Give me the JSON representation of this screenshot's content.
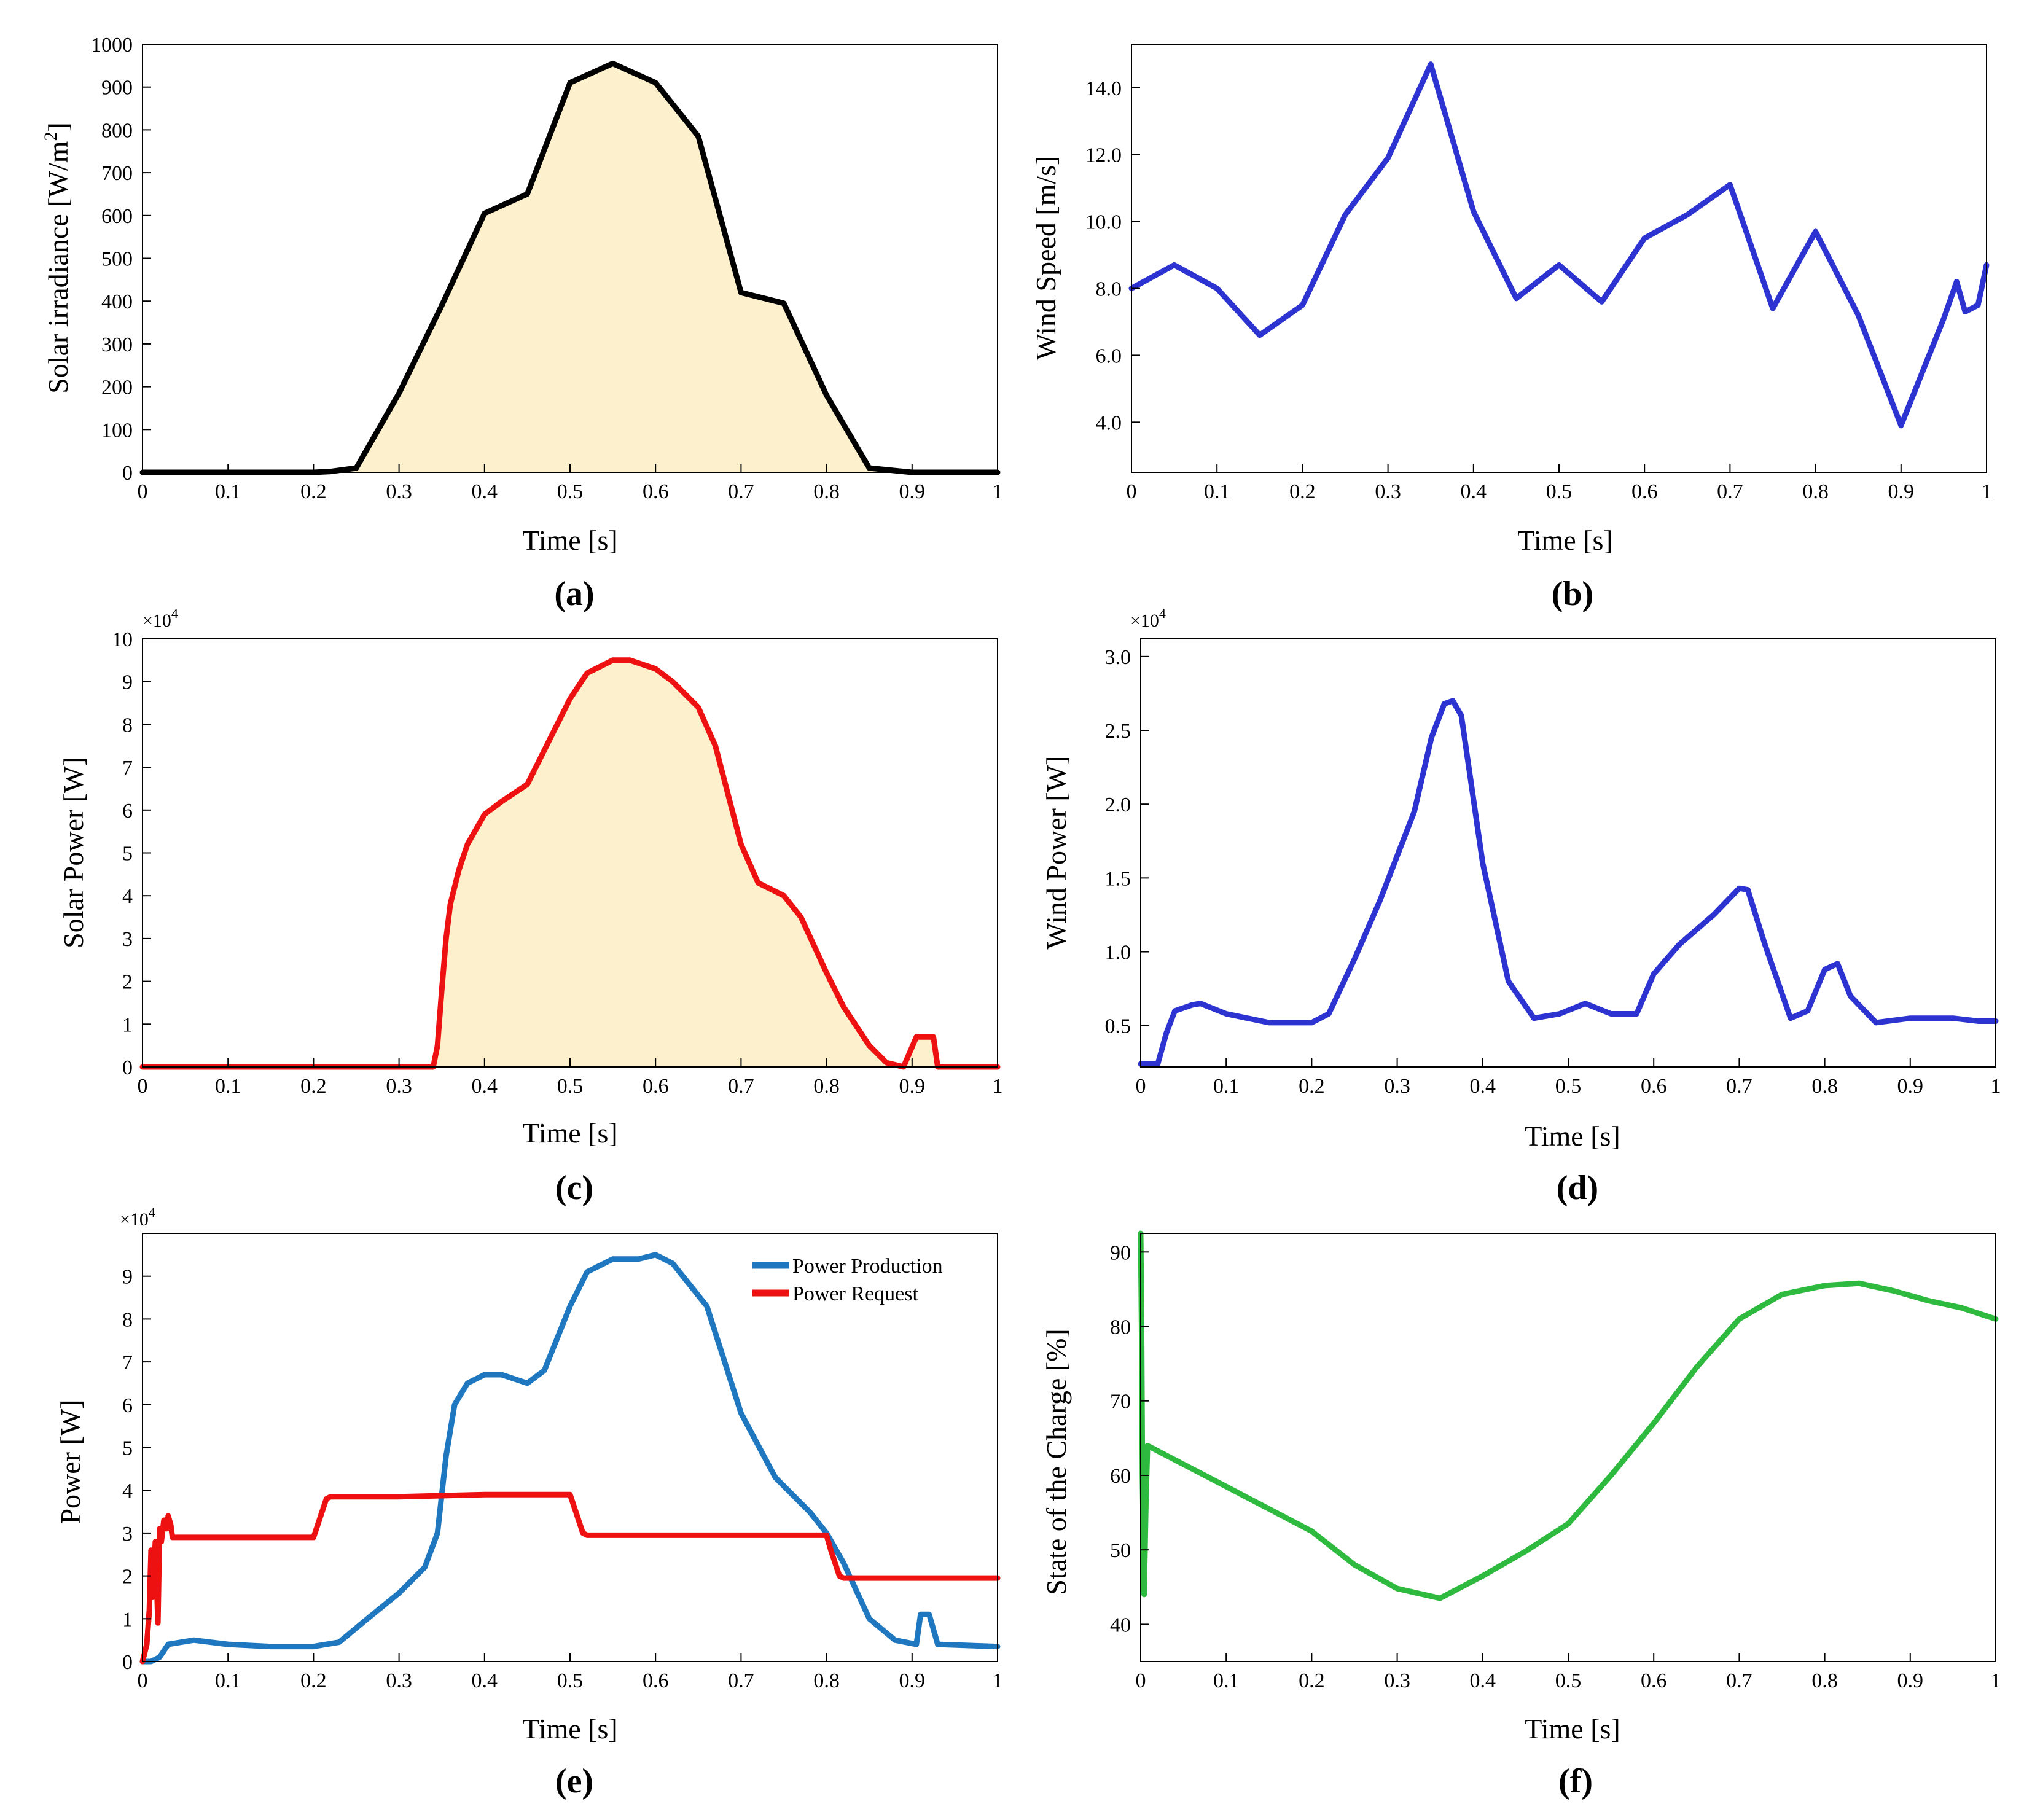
{
  "chart_data": [
    {
      "id": "a",
      "type": "area",
      "panel_label": "(a)",
      "xlabel": "Time [s]",
      "ylabel": "Solar irradiance [W/m",
      "ylabel_sup": "2",
      "ylabel_end": "]",
      "xlim": [
        0,
        1
      ],
      "ylim": [
        0,
        1000
      ],
      "xticks": [
        0,
        0.1,
        0.2,
        0.3,
        0.4,
        0.5,
        0.6,
        0.7,
        0.8,
        0.9,
        1
      ],
      "xtick_labels": [
        "0",
        "0.1",
        "0.2",
        "0.3",
        "0.4",
        "0.5",
        "0.6",
        "0.7",
        "0.8",
        "0.9",
        "1"
      ],
      "yticks": [
        0,
        100,
        200,
        300,
        400,
        500,
        600,
        700,
        800,
        900,
        1000
      ],
      "ytick_labels": [
        "0",
        "100",
        "200",
        "300",
        "400",
        "500",
        "600",
        "700",
        "800",
        "900",
        "1000"
      ],
      "multiplier": "",
      "series": [
        {
          "name": "Solar irradiance",
          "color": "#000000",
          "fill": "#FDF0CD",
          "x": [
            0,
            0.1,
            0.2,
            0.22,
            0.25,
            0.3,
            0.35,
            0.4,
            0.45,
            0.5,
            0.55,
            0.6,
            0.65,
            0.7,
            0.75,
            0.8,
            0.85,
            0.9,
            1
          ],
          "y": [
            0,
            0,
            0,
            2,
            10,
            185,
            390,
            605,
            650,
            910,
            955,
            910,
            785,
            420,
            395,
            180,
            10,
            0,
            0
          ]
        }
      ]
    },
    {
      "id": "b",
      "type": "line",
      "panel_label": "(b)",
      "xlabel": "Time [s]",
      "ylabel": "Wind Speed [m/s]",
      "xlim": [
        0,
        1
      ],
      "ylim": [
        2.5,
        15.3
      ],
      "xticks": [
        0,
        0.1,
        0.2,
        0.3,
        0.4,
        0.5,
        0.6,
        0.7,
        0.8,
        0.9,
        1
      ],
      "xtick_labels": [
        "0",
        "0.1",
        "0.2",
        "0.3",
        "0.4",
        "0.5",
        "0.6",
        "0.7",
        "0.8",
        "0.9",
        "1"
      ],
      "yticks": [
        4,
        6,
        8,
        10,
        12,
        14
      ],
      "ytick_labels": [
        "4.0",
        "6.0",
        "8.0",
        "10.0",
        "12.0",
        "14.0"
      ],
      "multiplier": "",
      "series": [
        {
          "name": "Wind Speed",
          "color": "#2C33D1",
          "x": [
            0,
            0.05,
            0.1,
            0.15,
            0.2,
            0.25,
            0.3,
            0.35,
            0.4,
            0.45,
            0.5,
            0.55,
            0.6,
            0.65,
            0.7,
            0.75,
            0.8,
            0.85,
            0.9,
            0.95,
            0.965,
            0.975,
            0.99,
            1
          ],
          "y": [
            8.0,
            8.7,
            8.0,
            6.6,
            7.5,
            10.2,
            11.9,
            14.7,
            10.3,
            7.7,
            8.7,
            7.6,
            9.5,
            10.2,
            11.1,
            7.4,
            9.7,
            7.2,
            3.9,
            7.1,
            8.2,
            7.3,
            7.5,
            8.7
          ]
        }
      ]
    },
    {
      "id": "c",
      "type": "area",
      "panel_label": "(c)",
      "xlabel": "Time [s]",
      "ylabel": "Solar Power [W]",
      "xlim": [
        0,
        1
      ],
      "ylim": [
        0,
        10
      ],
      "xticks": [
        0,
        0.1,
        0.2,
        0.3,
        0.4,
        0.5,
        0.6,
        0.7,
        0.8,
        0.9,
        1
      ],
      "xtick_labels": [
        "0",
        "0.1",
        "0.2",
        "0.3",
        "0.4",
        "0.5",
        "0.6",
        "0.7",
        "0.8",
        "0.9",
        "1"
      ],
      "yticks": [
        0,
        1,
        2,
        3,
        4,
        5,
        6,
        7,
        8,
        9,
        10
      ],
      "ytick_labels": [
        "0",
        "1",
        "2",
        "3",
        "4",
        "5",
        "6",
        "7",
        "8",
        "9",
        "10"
      ],
      "multiplier": "×10",
      "multiplier_exp": "4",
      "series": [
        {
          "name": "Solar Power",
          "color": "#EE1111",
          "fill": "#FDF0CD",
          "x": [
            0,
            0.1,
            0.2,
            0.3,
            0.34,
            0.345,
            0.35,
            0.355,
            0.36,
            0.37,
            0.38,
            0.4,
            0.42,
            0.45,
            0.47,
            0.5,
            0.52,
            0.55,
            0.57,
            0.6,
            0.62,
            0.65,
            0.67,
            0.7,
            0.72,
            0.75,
            0.77,
            0.8,
            0.82,
            0.85,
            0.87,
            0.89,
            0.905,
            0.91,
            0.925,
            0.93,
            1
          ],
          "y": [
            0,
            0,
            0,
            0,
            0,
            0.5,
            1.8,
            3.0,
            3.8,
            4.6,
            5.2,
            5.9,
            6.2,
            6.6,
            7.4,
            8.6,
            9.2,
            9.5,
            9.5,
            9.3,
            9.0,
            8.4,
            7.5,
            5.2,
            4.3,
            4.0,
            3.5,
            2.2,
            1.4,
            0.5,
            0.1,
            0.0,
            0.7,
            0.7,
            0.7,
            0.0,
            0
          ]
        }
      ]
    },
    {
      "id": "d",
      "type": "line",
      "panel_label": "(d)",
      "xlabel": "Time [s]",
      "ylabel": "Wind Power [W]",
      "xlim": [
        0,
        1
      ],
      "ylim": [
        0.22,
        3.12
      ],
      "xticks": [
        0,
        0.1,
        0.2,
        0.3,
        0.4,
        0.5,
        0.6,
        0.7,
        0.8,
        0.9,
        1
      ],
      "xtick_labels": [
        "0",
        "0.1",
        "0.2",
        "0.3",
        "0.4",
        "0.5",
        "0.6",
        "0.7",
        "0.8",
        "0.9",
        "1"
      ],
      "yticks": [
        0.5,
        1.0,
        1.5,
        2.0,
        2.5,
        3.0
      ],
      "ytick_labels": [
        "0.5",
        "1.0",
        "1.5",
        "2.0",
        "2.5",
        "3.0"
      ],
      "multiplier": "×10",
      "multiplier_exp": "4",
      "series": [
        {
          "name": "Wind Power",
          "color": "#2C33D1",
          "x": [
            0,
            0.02,
            0.03,
            0.04,
            0.06,
            0.07,
            0.1,
            0.15,
            0.2,
            0.22,
            0.25,
            0.28,
            0.32,
            0.34,
            0.355,
            0.365,
            0.375,
            0.4,
            0.43,
            0.46,
            0.49,
            0.52,
            0.55,
            0.58,
            0.6,
            0.63,
            0.67,
            0.7,
            0.71,
            0.73,
            0.76,
            0.78,
            0.8,
            0.815,
            0.83,
            0.86,
            0.9,
            0.95,
            0.98,
            1
          ],
          "y": [
            0.24,
            0.24,
            0.45,
            0.6,
            0.64,
            0.65,
            0.58,
            0.52,
            0.52,
            0.58,
            0.95,
            1.35,
            1.95,
            2.45,
            2.68,
            2.7,
            2.6,
            1.6,
            0.8,
            0.55,
            0.58,
            0.65,
            0.58,
            0.58,
            0.85,
            1.05,
            1.25,
            1.43,
            1.42,
            1.05,
            0.55,
            0.6,
            0.88,
            0.92,
            0.7,
            0.52,
            0.55,
            0.55,
            0.53,
            0.53
          ]
        }
      ]
    },
    {
      "id": "e",
      "type": "line",
      "panel_label": "(e)",
      "xlabel": "Time [s]",
      "ylabel": "Power [W]",
      "xlim": [
        0,
        1
      ],
      "ylim": [
        0,
        10
      ],
      "xticks": [
        0,
        0.1,
        0.2,
        0.3,
        0.4,
        0.5,
        0.6,
        0.7,
        0.8,
        0.9,
        1
      ],
      "xtick_labels": [
        "0",
        "0.1",
        "0.2",
        "0.3",
        "0.4",
        "0.5",
        "0.6",
        "0.7",
        "0.8",
        "0.9",
        "1"
      ],
      "yticks": [
        0,
        1,
        2,
        3,
        4,
        5,
        6,
        7,
        8,
        9
      ],
      "ytick_labels": [
        "0",
        "1",
        "2",
        "3",
        "4",
        "5",
        "6",
        "7",
        "8",
        "9"
      ],
      "multiplier": "×10",
      "multiplier_exp": "4",
      "legend_position": "top-right",
      "series": [
        {
          "name": "Power Production",
          "color": "#1F77BF",
          "x": [
            0,
            0.01,
            0.02,
            0.03,
            0.06,
            0.1,
            0.15,
            0.2,
            0.23,
            0.26,
            0.3,
            0.33,
            0.345,
            0.355,
            0.365,
            0.38,
            0.4,
            0.42,
            0.45,
            0.47,
            0.5,
            0.52,
            0.55,
            0.58,
            0.6,
            0.62,
            0.66,
            0.7,
            0.74,
            0.78,
            0.8,
            0.82,
            0.85,
            0.88,
            0.905,
            0.91,
            0.92,
            0.93,
            1
          ],
          "y": [
            0,
            0,
            0.1,
            0.4,
            0.5,
            0.4,
            0.35,
            0.35,
            0.45,
            0.95,
            1.6,
            2.2,
            3.0,
            4.8,
            6.0,
            6.5,
            6.7,
            6.7,
            6.5,
            6.8,
            8.3,
            9.1,
            9.4,
            9.4,
            9.5,
            9.3,
            8.3,
            5.8,
            4.3,
            3.5,
            3.0,
            2.3,
            1.0,
            0.5,
            0.4,
            1.1,
            1.1,
            0.4,
            0.35
          ]
        },
        {
          "name": "Power Request",
          "color": "#EE1111",
          "x": [
            0,
            0.005,
            0.008,
            0.01,
            0.012,
            0.015,
            0.018,
            0.02,
            0.022,
            0.025,
            0.028,
            0.03,
            0.033,
            0.035,
            0.04,
            0.1,
            0.2,
            0.205,
            0.215,
            0.22,
            0.3,
            0.4,
            0.5,
            0.505,
            0.515,
            0.52,
            0.6,
            0.7,
            0.8,
            0.805,
            0.815,
            0.82,
            0.9,
            1
          ],
          "y": [
            0,
            0.4,
            1.2,
            2.6,
            1.5,
            2.8,
            0.9,
            3.1,
            2.8,
            3.3,
            3.1,
            3.4,
            3.2,
            2.9,
            2.9,
            2.9,
            2.9,
            3.2,
            3.8,
            3.85,
            3.85,
            3.9,
            3.9,
            3.6,
            3.0,
            2.95,
            2.95,
            2.95,
            2.95,
            2.6,
            2.0,
            1.95,
            1.95,
            1.95
          ]
        }
      ]
    },
    {
      "id": "f",
      "type": "line",
      "panel_label": "(f)",
      "xlabel": "Time [s]",
      "ylabel": "State of the Charge [%]",
      "xlim": [
        0,
        1
      ],
      "ylim": [
        35,
        92.5
      ],
      "xticks": [
        0,
        0.1,
        0.2,
        0.3,
        0.4,
        0.5,
        0.6,
        0.7,
        0.8,
        0.9,
        1
      ],
      "xtick_labels": [
        "0",
        "0.1",
        "0.2",
        "0.3",
        "0.4",
        "0.5",
        "0.6",
        "0.7",
        "0.8",
        "0.9",
        "1"
      ],
      "yticks": [
        40,
        50,
        60,
        70,
        80,
        90
      ],
      "ytick_labels": [
        "40",
        "50",
        "60",
        "70",
        "80",
        "90"
      ],
      "multiplier": "",
      "series": [
        {
          "name": "State of the Charge",
          "color": "#2DBA3E",
          "x": [
            0,
            0.001,
            0.002,
            0.004,
            0.006,
            0.008,
            0.1,
            0.2,
            0.25,
            0.3,
            0.35,
            0.4,
            0.45,
            0.5,
            0.55,
            0.6,
            0.65,
            0.7,
            0.75,
            0.8,
            0.84,
            0.88,
            0.92,
            0.96,
            1
          ],
          "y": [
            92.5,
            80,
            60,
            44,
            56,
            64,
            58.5,
            52.5,
            48,
            44.8,
            43.5,
            46.5,
            49.8,
            53.5,
            60,
            67,
            74.5,
            81,
            84.3,
            85.5,
            85.8,
            84.8,
            83.5,
            82.5,
            81
          ]
        }
      ]
    }
  ]
}
